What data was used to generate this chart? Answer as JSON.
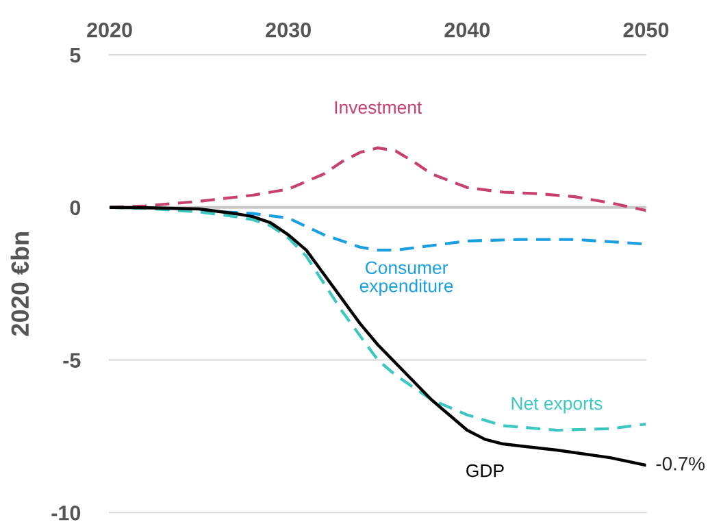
{
  "chart_data": {
    "type": "line",
    "ylabel": "2020 €bn",
    "xlim": [
      2020,
      2050
    ],
    "xticks": [
      2020,
      2030,
      2040,
      2050
    ],
    "ylim": [
      -10,
      5
    ],
    "yticks": [
      -10,
      -5,
      0,
      5
    ],
    "grid": "y",
    "line_style": "dashed",
    "legend": false,
    "series": [
      {
        "name": "Investment",
        "color": "#c8416e",
        "x": [
          2020,
          2022,
          2025,
          2028,
          2030,
          2032,
          2033,
          2034,
          2035,
          2036,
          2037,
          2038,
          2040,
          2042,
          2044,
          2046,
          2048,
          2050
        ],
        "values": [
          0,
          0.05,
          0.2,
          0.4,
          0.6,
          1.1,
          1.5,
          1.8,
          1.95,
          1.85,
          1.5,
          1.1,
          0.65,
          0.5,
          0.45,
          0.35,
          0.15,
          -0.1
        ]
      },
      {
        "name": "Consumer expenditure",
        "color": "#1a9fe0",
        "x": [
          2020,
          2022,
          2025,
          2028,
          2030,
          2032,
          2034,
          2035,
          2036,
          2038,
          2040,
          2043,
          2046,
          2050
        ],
        "values": [
          0,
          -0.02,
          -0.1,
          -0.2,
          -0.35,
          -0.9,
          -1.3,
          -1.4,
          -1.4,
          -1.25,
          -1.1,
          -1.05,
          -1.05,
          -1.2
        ]
      },
      {
        "name": "Net exports",
        "color": "#3cc8c0",
        "x": [
          2020,
          2022,
          2025,
          2027,
          2028,
          2029,
          2030,
          2031,
          2032,
          2033,
          2034,
          2035,
          2036,
          2037,
          2038,
          2040,
          2042,
          2045,
          2048,
          2050
        ],
        "values": [
          0,
          -0.03,
          -0.15,
          -0.3,
          -0.4,
          -0.6,
          -1.0,
          -1.6,
          -2.5,
          -3.4,
          -4.2,
          -5.0,
          -5.5,
          -5.9,
          -6.3,
          -6.8,
          -7.15,
          -7.3,
          -7.25,
          -7.1
        ]
      },
      {
        "name": "GDP",
        "color": "#000000",
        "line_style": "solid",
        "x": [
          2020,
          2022,
          2025,
          2027,
          2028,
          2029,
          2030,
          2031,
          2032,
          2033,
          2034,
          2035,
          2036,
          2037,
          2038,
          2039,
          2040,
          2041,
          2042,
          2045,
          2048,
          2050
        ],
        "values": [
          0,
          -0.01,
          -0.05,
          -0.2,
          -0.3,
          -0.5,
          -0.9,
          -1.4,
          -2.2,
          -3.0,
          -3.8,
          -4.5,
          -5.1,
          -5.7,
          -6.3,
          -6.8,
          -7.3,
          -7.6,
          -7.75,
          -7.95,
          -8.2,
          -8.45
        ]
      }
    ],
    "ref_lines": [
      {
        "axis": "y",
        "value": 0,
        "color": "#c8c8c8"
      }
    ],
    "annotations": [
      {
        "text": "-0.7%",
        "x": 2050,
        "y": -8.45
      }
    ]
  }
}
